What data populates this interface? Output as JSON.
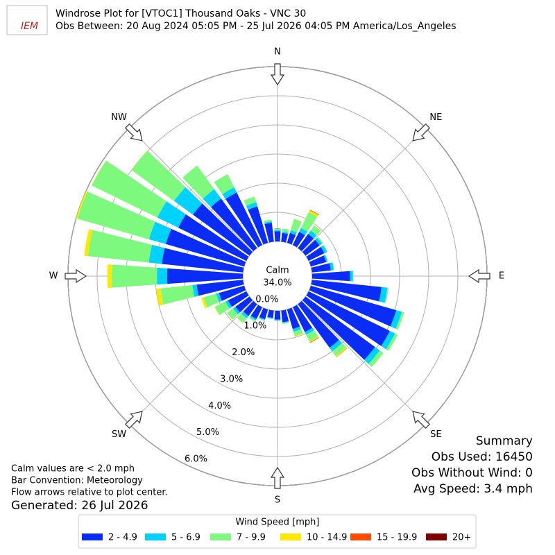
{
  "chart_data": {
    "type": "windrose",
    "logo_text": "IEM",
    "title": "Windrose Plot for [VTOC1] Thousand Oaks - VNC 30",
    "subtitle": "Obs Between: 20 Aug 2024 05:05 PM - 25 Jul 2026 04:05 PM America/Los_Angeles",
    "x": [
      0,
      10,
      20,
      30,
      40,
      50,
      60,
      70,
      80,
      90,
      100,
      110,
      120,
      130,
      140,
      150,
      160,
      170,
      180,
      190,
      200,
      210,
      220,
      230,
      240,
      250,
      260,
      270,
      280,
      290,
      300,
      310,
      320,
      330,
      340,
      350
    ],
    "series": [
      {
        "name": "2 - 4.9",
        "color": "#0a2df5",
        "values": [
          0.35,
          0.3,
          0.35,
          0.5,
          0.6,
          0.6,
          0.6,
          0.55,
          0.65,
          1.3,
          2.4,
          3.05,
          3.1,
          2.95,
          1.85,
          0.95,
          0.7,
          0.4,
          0.3,
          0.25,
          0.35,
          0.45,
          0.5,
          0.6,
          0.7,
          0.9,
          1.6,
          2.6,
          2.8,
          2.8,
          2.6,
          2.4,
          2.1,
          2.0,
          1.3,
          0.65
        ]
      },
      {
        "name": "5 - 6.9",
        "color": "#00d2ff",
        "values": [
          0.05,
          0.05,
          0.1,
          0.15,
          0.15,
          0.1,
          0.1,
          0.05,
          0.1,
          0.1,
          0.2,
          0.2,
          0.2,
          0.2,
          0.15,
          0.1,
          0.1,
          0.03,
          0.03,
          0.03,
          0.03,
          0.05,
          0.1,
          0.1,
          0.1,
          0.1,
          0.15,
          0.35,
          0.45,
          0.6,
          0.8,
          0.8,
          0.4,
          0.2,
          0.15,
          0.05
        ]
      },
      {
        "name": "7 - 9.9",
        "color": "#7dfa7d",
        "values": [
          0.05,
          0.1,
          0.4,
          0.6,
          0.2,
          0.05,
          0.03,
          0.02,
          0.02,
          0.02,
          0.04,
          0.08,
          0.1,
          0.15,
          0.2,
          0.25,
          0.15,
          0.03,
          0.02,
          0.02,
          0.03,
          0.05,
          0.2,
          0.25,
          0.4,
          0.45,
          1.1,
          1.55,
          2.1,
          2.55,
          2.5,
          1.8,
          1.0,
          0.5,
          0.2,
          0.06
        ]
      },
      {
        "name": "10 - 14.9",
        "color": "#ffe800",
        "values": [
          0,
          0,
          0.01,
          0.08,
          0.01,
          0,
          0,
          0,
          0,
          0,
          0,
          0,
          0,
          0,
          0.04,
          0.04,
          0.03,
          0,
          0,
          0,
          0,
          0,
          0.01,
          0.01,
          0.02,
          0.08,
          0.15,
          0.15,
          0.13,
          0.05,
          0.01,
          0.01,
          0,
          0,
          0,
          0
        ]
      },
      {
        "name": "15 - 19.9",
        "color": "#ff4a00",
        "values": [
          0,
          0,
          0,
          0.02,
          0,
          0,
          0,
          0,
          0,
          0,
          0,
          0,
          0,
          0,
          0.01,
          0.02,
          0,
          0,
          0,
          0,
          0,
          0,
          0,
          0,
          0,
          0,
          0,
          0,
          0,
          0,
          0,
          0,
          0,
          0,
          0,
          0
        ]
      },
      {
        "name": "20+",
        "color": "#800000",
        "values": [
          0,
          0,
          0,
          0,
          0,
          0,
          0,
          0,
          0,
          0,
          0,
          0,
          0,
          0,
          0,
          0,
          0,
          0,
          0,
          0,
          0,
          0,
          0,
          0,
          0,
          0,
          0,
          0,
          0,
          0,
          0,
          0,
          0,
          0,
          0,
          0
        ]
      }
    ],
    "ylim": [
      0,
      6
    ],
    "yticks": [
      {
        "value": 0,
        "label": "0.0%"
      },
      {
        "value": 1,
        "label": "1.0%"
      },
      {
        "value": 2,
        "label": "2.0%"
      },
      {
        "value": 3,
        "label": "3.0%"
      },
      {
        "value": 4,
        "label": "4.0%"
      },
      {
        "value": 5,
        "label": "5.0%"
      },
      {
        "value": 6,
        "label": "6.0%"
      }
    ],
    "grid": true,
    "compass": [
      {
        "label": "N",
        "angle": 0
      },
      {
        "label": "NE",
        "angle": 45
      },
      {
        "label": "E",
        "angle": 90
      },
      {
        "label": "SE",
        "angle": 135
      },
      {
        "label": "S",
        "angle": 180
      },
      {
        "label": "SW",
        "angle": 225
      },
      {
        "label": "W",
        "angle": 270
      },
      {
        "label": "NW",
        "angle": 315
      }
    ],
    "calm": {
      "label": "Calm",
      "value": 34.0,
      "value_label": "34.0%"
    },
    "legend_title": "Wind Speed [mph]",
    "summary": [
      "Summary",
      "Obs Used: 16450",
      "Obs Without Wind: 0",
      "Avg Speed: 3.4 mph"
    ],
    "notes": [
      "Calm values are < 2.0 mph",
      "Bar Convention: Meteorology",
      "Flow arrows relative to plot center."
    ],
    "generated": "Generated: 26 Jul 2026"
  }
}
